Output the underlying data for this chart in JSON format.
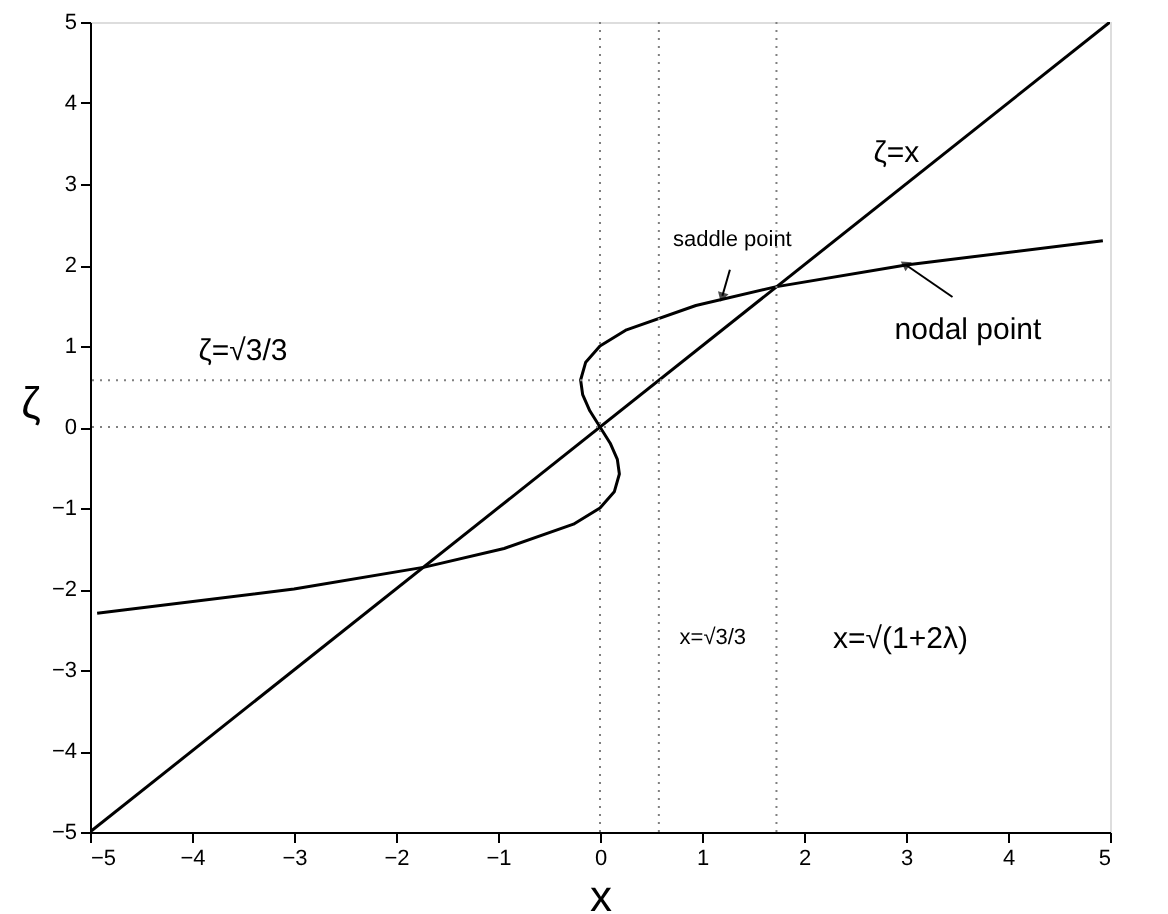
{
  "chart_data": {
    "type": "line",
    "xlabel": "x",
    "ylabel": "ζ",
    "xlim": [
      -5,
      5
    ],
    "ylim": [
      -5,
      5
    ],
    "xticks": [
      {
        "value": -5,
        "label": "−5"
      },
      {
        "value": -4,
        "label": "−4"
      },
      {
        "value": -3,
        "label": "−3"
      },
      {
        "value": -2,
        "label": "−2"
      },
      {
        "value": -1,
        "label": "−1"
      },
      0,
      1,
      2,
      3,
      4,
      5
    ],
    "yticks": [
      {
        "value": -5,
        "label": "−5"
      },
      {
        "value": -4,
        "label": "−4"
      },
      {
        "value": -3,
        "label": "−3"
      },
      {
        "value": -2,
        "label": "−2"
      },
      {
        "value": -1,
        "label": "−1"
      },
      0,
      1,
      2,
      3,
      4,
      5
    ],
    "grid": false,
    "line_style": "solid",
    "marker": "none",
    "series": [
      {
        "color": "#000000",
        "x": [
          -5,
          5
        ],
        "values": [
          -5,
          5
        ]
      },
      {
        "color": "#000000",
        "x": [
          -4.93,
          -3,
          -1.72,
          -0.94,
          -0.26,
          0,
          0.14,
          0.19,
          0.17,
          0.1,
          0,
          -0.1,
          -0.17,
          -0.19,
          -0.14,
          0,
          0.26,
          0.94,
          1.72,
          3,
          4.93
        ],
        "values": [
          -2.3,
          -2.0,
          -1.73,
          -1.5,
          -1.2,
          -1.0,
          -0.8,
          -0.58,
          -0.4,
          -0.2,
          0,
          0.2,
          0.4,
          0.58,
          0.8,
          1.0,
          1.2,
          1.5,
          1.73,
          2.0,
          2.3
        ]
      }
    ],
    "ref_lines": [
      {
        "axis": "x",
        "value": 0,
        "color": "#808080",
        "line_style": "dotted"
      },
      {
        "axis": "x",
        "value": 0.577,
        "color": "#808080",
        "line_style": "dotted"
      },
      {
        "axis": "x",
        "value": 1.73,
        "color": "#808080",
        "line_style": "dotted"
      },
      {
        "axis": "y",
        "value": 0,
        "color": "#808080",
        "line_style": "dotted"
      },
      {
        "axis": "y",
        "value": 0.577,
        "color": "#808080",
        "line_style": "dotted"
      }
    ],
    "annotations": [
      {
        "text": "ζ=x",
        "x": 3.2,
        "y": 3.2
      },
      {
        "text": "saddle point",
        "x": 1.2,
        "y": 1.62
      },
      {
        "text": "nodal point",
        "x": 3.0,
        "y": 2.0
      },
      {
        "text": "ζ=√3/3",
        "x": -3.5,
        "y": 0.577
      },
      {
        "text": "x=√3/3",
        "x": 0.577,
        "y": -2.6
      },
      {
        "text": "x=√(1+2λ)",
        "x": 1.73,
        "y": -2.6
      }
    ]
  }
}
